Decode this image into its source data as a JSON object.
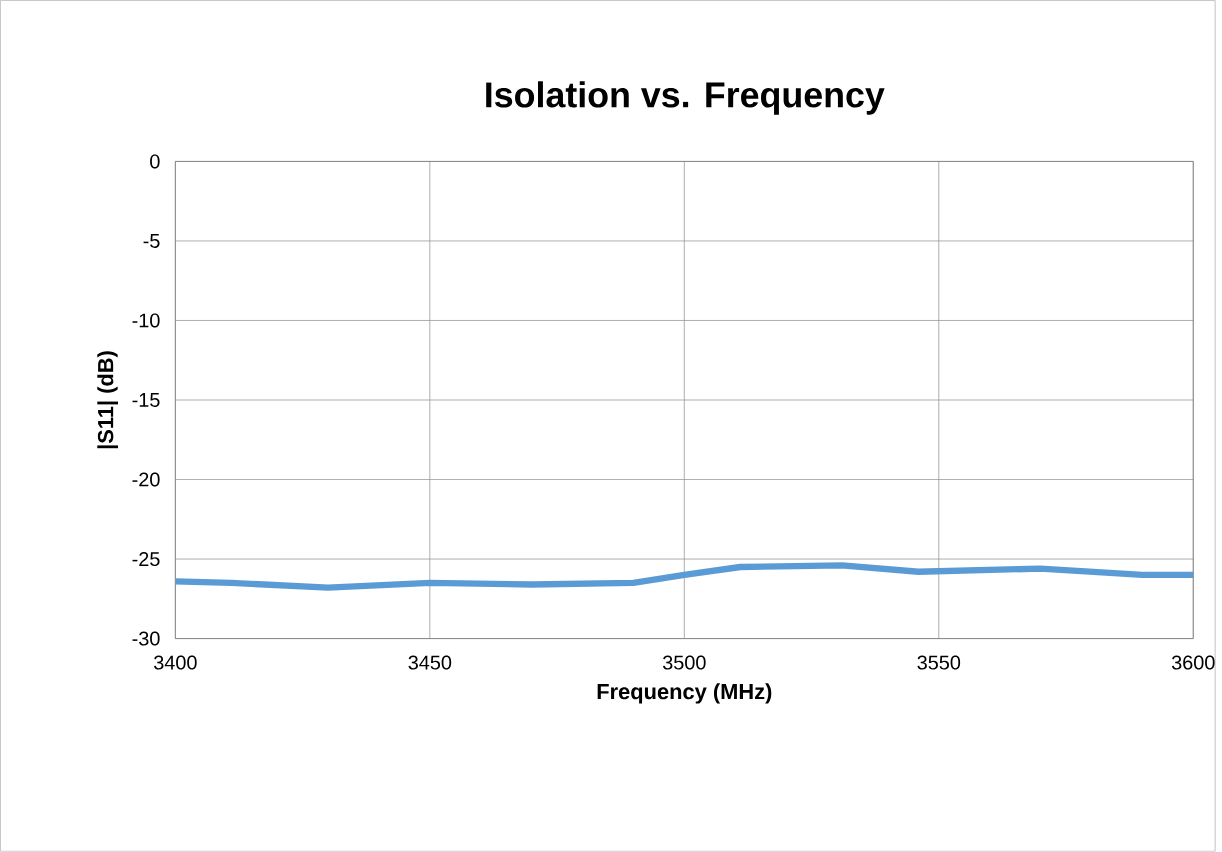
{
  "chart_data": {
    "type": "line",
    "title": "Isolation vs. Frequency",
    "xlabel": "Frequency (MHz)",
    "ylabel": "|S11| (dB)",
    "series": [
      {
        "color": "#5b9bd5",
        "x": [
          3400,
          3411,
          3430,
          3450,
          3470,
          3490,
          3500,
          3511,
          3531,
          3546,
          3570,
          3590,
          3600
        ],
        "values": [
          -26.4,
          -26.5,
          -26.8,
          -26.5,
          -26.6,
          -26.5,
          -26.0,
          -25.5,
          -25.4,
          -25.8,
          -25.6,
          -26.0,
          -26.0
        ]
      }
    ],
    "xlim": [
      3400,
      3600
    ],
    "xticks": [
      3400,
      3450,
      3500,
      3550,
      3600
    ],
    "ylim": [
      -30,
      0
    ],
    "yticks": [
      -30,
      -25,
      -20,
      -15,
      -10,
      -5,
      0
    ],
    "grid": true,
    "marker": "none",
    "line_style": "solid"
  }
}
